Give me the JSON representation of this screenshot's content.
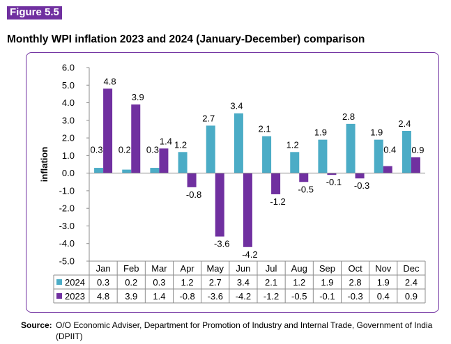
{
  "figure_label": "Figure 5.5",
  "title": "Monthly WPI inflation 2023 and 2024 (January-December) comparison",
  "source": {
    "label": "Source:",
    "text": "O/O Economic Adviser, Department for Promotion of Industry and Internal Trade, Government of India (DPIIT)"
  },
  "colors": {
    "series_2024": "#4bacc6",
    "series_2023": "#7030a0",
    "frame": "#7030a0"
  },
  "chart_data": {
    "type": "bar",
    "title": "",
    "xlabel": "",
    "ylabel": "inflation",
    "ylim": [
      -5.0,
      6.0
    ],
    "yticks": [
      "-5.0",
      "-4.0",
      "-3.0",
      "-2.0",
      "-1.0",
      "0.0",
      "1.0",
      "2.0",
      "3.0",
      "4.0",
      "5.0",
      "6.0"
    ],
    "categories": [
      "Jan",
      "Feb",
      "Mar",
      "Apr",
      "May",
      "Jun",
      "Jul",
      "Aug",
      "Sep",
      "Oct",
      "Nov",
      "Dec"
    ],
    "series": [
      {
        "name": "2024",
        "values": [
          0.3,
          0.2,
          0.3,
          1.2,
          2.7,
          3.4,
          2.1,
          1.2,
          1.9,
          2.8,
          1.9,
          2.4
        ]
      },
      {
        "name": "2023",
        "values": [
          4.8,
          3.9,
          1.4,
          -0.8,
          -3.6,
          -4.2,
          -1.2,
          -0.5,
          -0.1,
          -0.3,
          0.4,
          0.9
        ]
      }
    ],
    "grid": false,
    "legend": "data-table"
  }
}
